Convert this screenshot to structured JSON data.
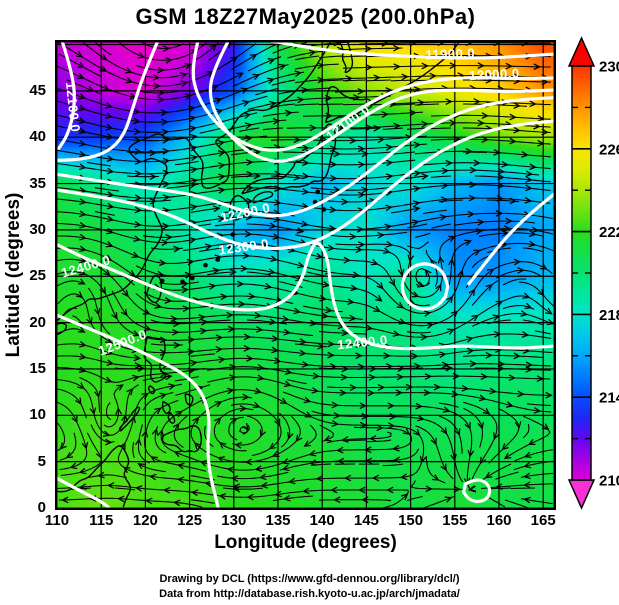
{
  "title": "GSM 18Z27May2025 (200.0hPa)",
  "axes": {
    "x": {
      "label": "Longitude (degrees)",
      "ticks": [
        110,
        115,
        120,
        125,
        130,
        135,
        140,
        145,
        150,
        155,
        160,
        165
      ]
    },
    "y": {
      "label": "Latitude (degrees)",
      "ticks": [
        0,
        5,
        10,
        15,
        20,
        25,
        30,
        35,
        40,
        45
      ]
    }
  },
  "footer": {
    "line1": "Drawing by DCL (https://www.gfd-dennou.org/library/dcl/)",
    "line2": "Data from http://database.rish.kyoto-u.ac.jp/arch/jmadata/"
  },
  "chart_data": {
    "type": "heatmap",
    "title": "GSM 18Z27May2025 (200.0hPa)",
    "xlabel": "Longitude (degrees)",
    "ylabel": "Latitude (degrees)",
    "xlim": [
      110,
      166.8
    ],
    "ylim": [
      0,
      50.5
    ],
    "x_ticks": [
      110,
      115,
      120,
      125,
      130,
      135,
      140,
      145,
      150,
      155,
      160,
      165
    ],
    "y_ticks": [
      0,
      5,
      10,
      15,
      20,
      25,
      30,
      35,
      40,
      45
    ],
    "grid": true,
    "grid_interval_deg": 5,
    "colorbar": {
      "position": "right",
      "range": [
        210,
        230
      ],
      "ticks": [
        230,
        226,
        222,
        218,
        214,
        210
      ],
      "minor_ticks": [
        228,
        224,
        220,
        216,
        212
      ],
      "palette": [
        [
          208.0,
          "#ff50dc"
        ],
        [
          209.3,
          "#f000c8"
        ],
        [
          210.5,
          "#c800dc"
        ],
        [
          211.8,
          "#6e00f0"
        ],
        [
          213.0,
          "#1e28f5"
        ],
        [
          214.2,
          "#0055ff"
        ],
        [
          215.5,
          "#0096ff"
        ],
        [
          217.0,
          "#00c8eb"
        ],
        [
          218.0,
          "#00e6c8"
        ],
        [
          219.2,
          "#00e696"
        ],
        [
          220.5,
          "#0ae15a"
        ],
        [
          222.0,
          "#28dc1e"
        ],
        [
          223.5,
          "#8ce60a"
        ],
        [
          225.0,
          "#dceb00"
        ],
        [
          226.2,
          "#ffe100"
        ],
        [
          227.5,
          "#ffaa00"
        ],
        [
          229.0,
          "#ff6400"
        ],
        [
          230.2,
          "#ff2800"
        ],
        [
          232.0,
          "#fa0000"
        ]
      ]
    },
    "temperature_grid": {
      "lons": [
        110,
        115,
        120,
        125,
        130,
        135,
        140,
        145,
        150,
        155,
        160,
        165
      ],
      "lats": [
        50,
        45,
        40,
        35,
        30,
        25,
        20,
        15,
        10,
        5,
        0
      ],
      "values_K": [
        [
          210.5,
          210.0,
          209.5,
          210.0,
          212.5,
          221.0,
          224.0,
          226.0,
          226.5,
          227.0,
          228.0,
          229.5
        ],
        [
          211.5,
          210.5,
          210.0,
          211.5,
          214.0,
          219.0,
          222.0,
          223.5,
          224.5,
          225.5,
          226.5,
          228.0
        ],
        [
          213.0,
          213.5,
          214.0,
          217.0,
          221.0,
          222.0,
          220.0,
          218.5,
          220.0,
          221.5,
          223.0,
          224.0
        ],
        [
          221.0,
          219.5,
          218.0,
          219.5,
          221.0,
          218.0,
          216.5,
          217.5,
          218.0,
          216.5,
          215.5,
          217.0
        ],
        [
          221.5,
          221.0,
          220.0,
          218.5,
          216.5,
          215.5,
          217.5,
          218.0,
          215.5,
          215.0,
          215.0,
          216.0
        ],
        [
          221.5,
          221.5,
          221.0,
          220.0,
          218.5,
          219.0,
          219.5,
          218.0,
          219.5,
          215.5,
          215.5,
          216.5
        ],
        [
          222.0,
          222.0,
          221.5,
          221.0,
          220.5,
          220.0,
          220.5,
          220.0,
          219.5,
          218.5,
          218.5,
          218.5
        ],
        [
          222.0,
          222.0,
          222.0,
          221.5,
          221.5,
          221.0,
          220.5,
          220.0,
          220.0,
          219.5,
          220.0,
          220.0
        ],
        [
          222.0,
          222.5,
          222.0,
          222.0,
          221.5,
          221.5,
          221.0,
          220.5,
          220.5,
          220.5,
          220.5,
          220.5
        ],
        [
          222.5,
          222.5,
          222.5,
          222.0,
          222.0,
          221.5,
          221.5,
          221.0,
          221.0,
          221.0,
          221.0,
          221.0
        ],
        [
          222.5,
          223.0,
          222.5,
          222.5,
          222.0,
          222.0,
          221.5,
          221.5,
          221.0,
          221.5,
          221.0,
          221.0
        ]
      ]
    },
    "contours": {
      "levels": [
        11900,
        12000,
        12100,
        12200,
        12300,
        12400,
        12500
      ],
      "interval": 100,
      "labels": [
        {
          "text": "11900.0",
          "lon": 154.5,
          "lat": 48.5,
          "rot": -2
        },
        {
          "text": "12000.0",
          "lon": 159.5,
          "lat": 46.3,
          "rot": -3
        },
        {
          "text": "12100.0",
          "lon": 111.3,
          "lat": 43.2,
          "rot": 84
        },
        {
          "text": "12100.0",
          "lon": 143.2,
          "lat": 41.2,
          "rot": -37
        },
        {
          "text": "12200.0",
          "lon": 131.4,
          "lat": 31.4,
          "rot": -12
        },
        {
          "text": "12300.0",
          "lon": 131.2,
          "lat": 27.7,
          "rot": -8
        },
        {
          "text": "12400.0",
          "lon": 113.4,
          "lat": 25.6,
          "rot": -16
        },
        {
          "text": "12400.0",
          "lon": 144.6,
          "lat": 17.4,
          "rot": -6
        },
        {
          "text": "12500.0",
          "lon": 117.6,
          "lat": 17.4,
          "rot": -21
        }
      ]
    },
    "streamline_features": [
      {
        "type": "cyclone",
        "lon": 122.0,
        "lat": 48.5,
        "strength": 2.6,
        "radius": 10
      },
      {
        "type": "cyclone",
        "lon": 151.6,
        "lat": 23.9,
        "strength": 3.0,
        "radius": 4.0
      },
      {
        "type": "anticyclone",
        "lon": 113.0,
        "lat": 27.0,
        "strength": 1.1,
        "radius": 7
      },
      {
        "type": "anticyclone",
        "lon": 164.0,
        "lat": 28.0,
        "strength": 1.0,
        "radius": 6
      },
      {
        "type": "cyclone",
        "lon": 116.0,
        "lat": 9.0,
        "strength": 0.8,
        "radius": 4
      },
      {
        "type": "anticyclone",
        "lon": 131.0,
        "lat": 9.0,
        "strength": 0.7,
        "radius": 5
      },
      {
        "type": "convergence",
        "lon": 157.6,
        "lat": 2.0,
        "strength": 1.6,
        "radius": 5
      }
    ]
  }
}
